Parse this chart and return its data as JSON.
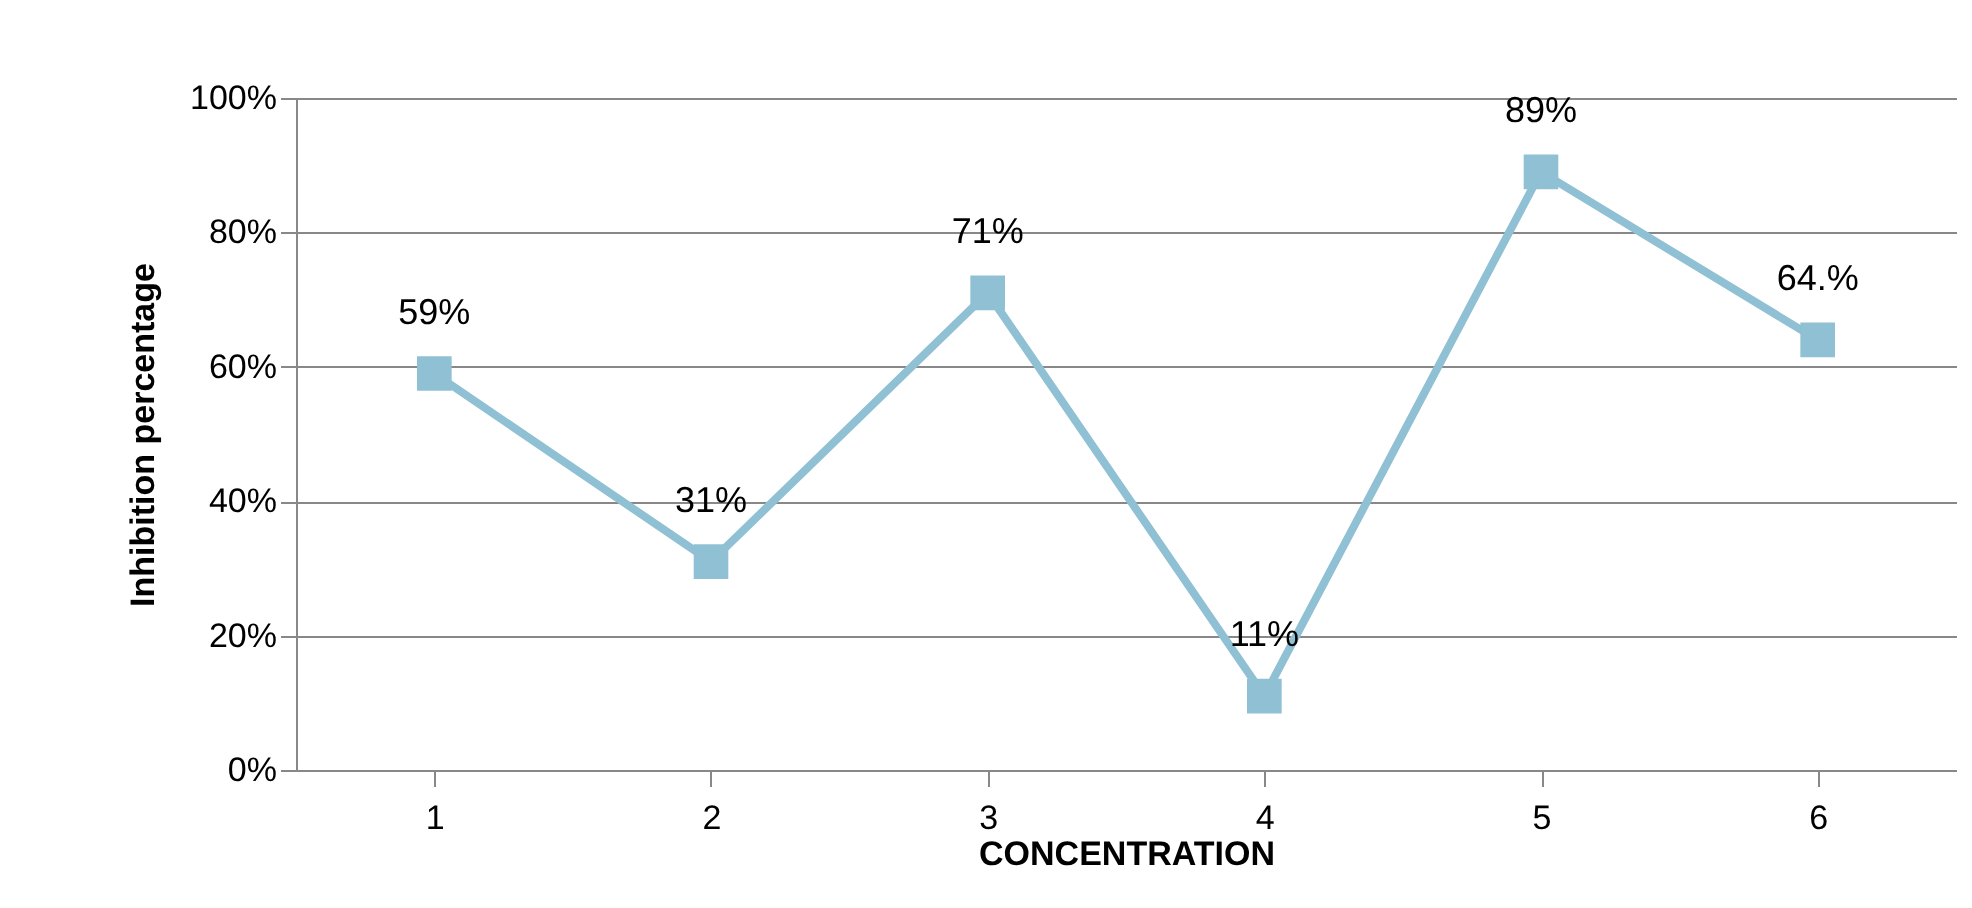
{
  "chart_data": {
    "type": "line",
    "xlabel": "CONCENTRATION",
    "ylabel": "Inhibition  percentage",
    "categories": [
      "1",
      "2",
      "3",
      "4",
      "5",
      "6"
    ],
    "series": [
      {
        "color": "#8fc0d4",
        "values": [
          59,
          31,
          71,
          11,
          89,
          64
        ],
        "value_labels": [
          "59%",
          "31%",
          "71%",
          "11%",
          "89%",
          "64.%"
        ]
      }
    ],
    "ylim": [
      0,
      100
    ],
    "yticks": [
      {
        "value": 0,
        "label": "0%"
      },
      {
        "value": 20,
        "label": "20%"
      },
      {
        "value": 40,
        "label": "40%"
      },
      {
        "value": 60,
        "label": "60%"
      },
      {
        "value": 80,
        "label": "80%"
      },
      {
        "value": 100,
        "label": "100%"
      }
    ],
    "grid": "y",
    "marker": "square",
    "line_style": "solid"
  }
}
